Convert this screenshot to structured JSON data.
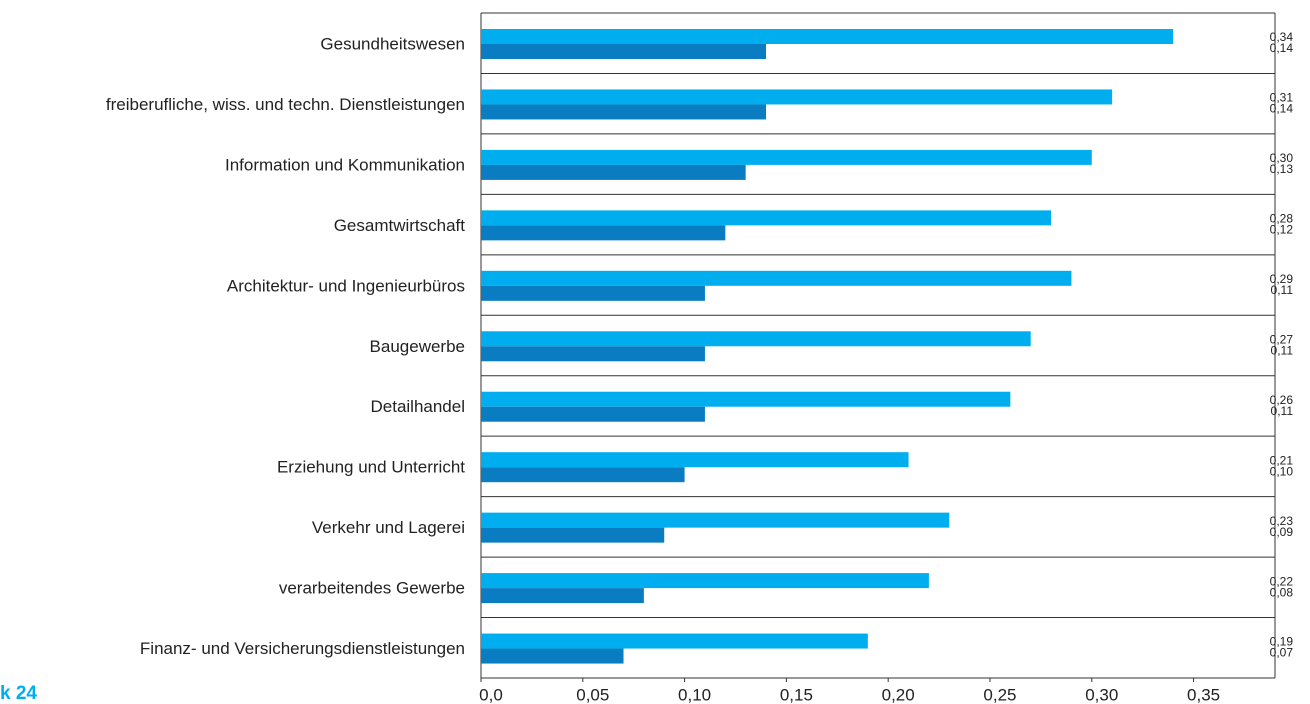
{
  "chart_data": {
    "type": "hbar",
    "annotation": "k 24",
    "categories": [
      "Gesundheitswesen",
      "freiberufliche, wiss. und techn. Dienstleistungen",
      "Information und Kommunikation",
      "Gesamtwirtschaft",
      "Architektur- und Ingenieurbüros",
      "Baugewerbe",
      "Detailhandel",
      "Erziehung und Unterricht",
      "Verkehr und Lagerei",
      "verarbeitendes Gewerbe",
      "Finanz- und Versicherungsdienstleistungen"
    ],
    "series": [
      {
        "color": "#00aeef",
        "values": [
          0.34,
          0.31,
          0.3,
          0.28,
          0.29,
          0.27,
          0.26,
          0.21,
          0.23,
          0.22,
          0.19
        ],
        "value_labels": [
          "0,34",
          "0,31",
          "0,30",
          "0,28",
          "0,29",
          "0,27",
          "0,26",
          "0,21",
          "0,23",
          "0,22",
          "0,19"
        ]
      },
      {
        "color": "#0a7dc2",
        "values": [
          0.14,
          0.14,
          0.13,
          0.12,
          0.11,
          0.11,
          0.11,
          0.1,
          0.09,
          0.08,
          0.07
        ],
        "value_labels": [
          "0,14",
          "0,14",
          "0,13",
          "0,12",
          "0,11",
          "0,11",
          "0,11",
          "0,10",
          "0,09",
          "0,08",
          "0,07"
        ]
      }
    ],
    "xlim": [
      0,
      0.39
    ],
    "xticks": [
      {
        "value": 0,
        "label": "0,0"
      },
      {
        "value": 0.05,
        "label": "0,05"
      },
      {
        "value": 0.1,
        "label": "0,10"
      },
      {
        "value": 0.15,
        "label": "0,15"
      },
      {
        "value": 0.2,
        "label": "0,20"
      },
      {
        "value": 0.25,
        "label": "0,25"
      },
      {
        "value": 0.3,
        "label": "0,30"
      },
      {
        "value": 0.35,
        "label": "0,35"
      }
    ]
  }
}
